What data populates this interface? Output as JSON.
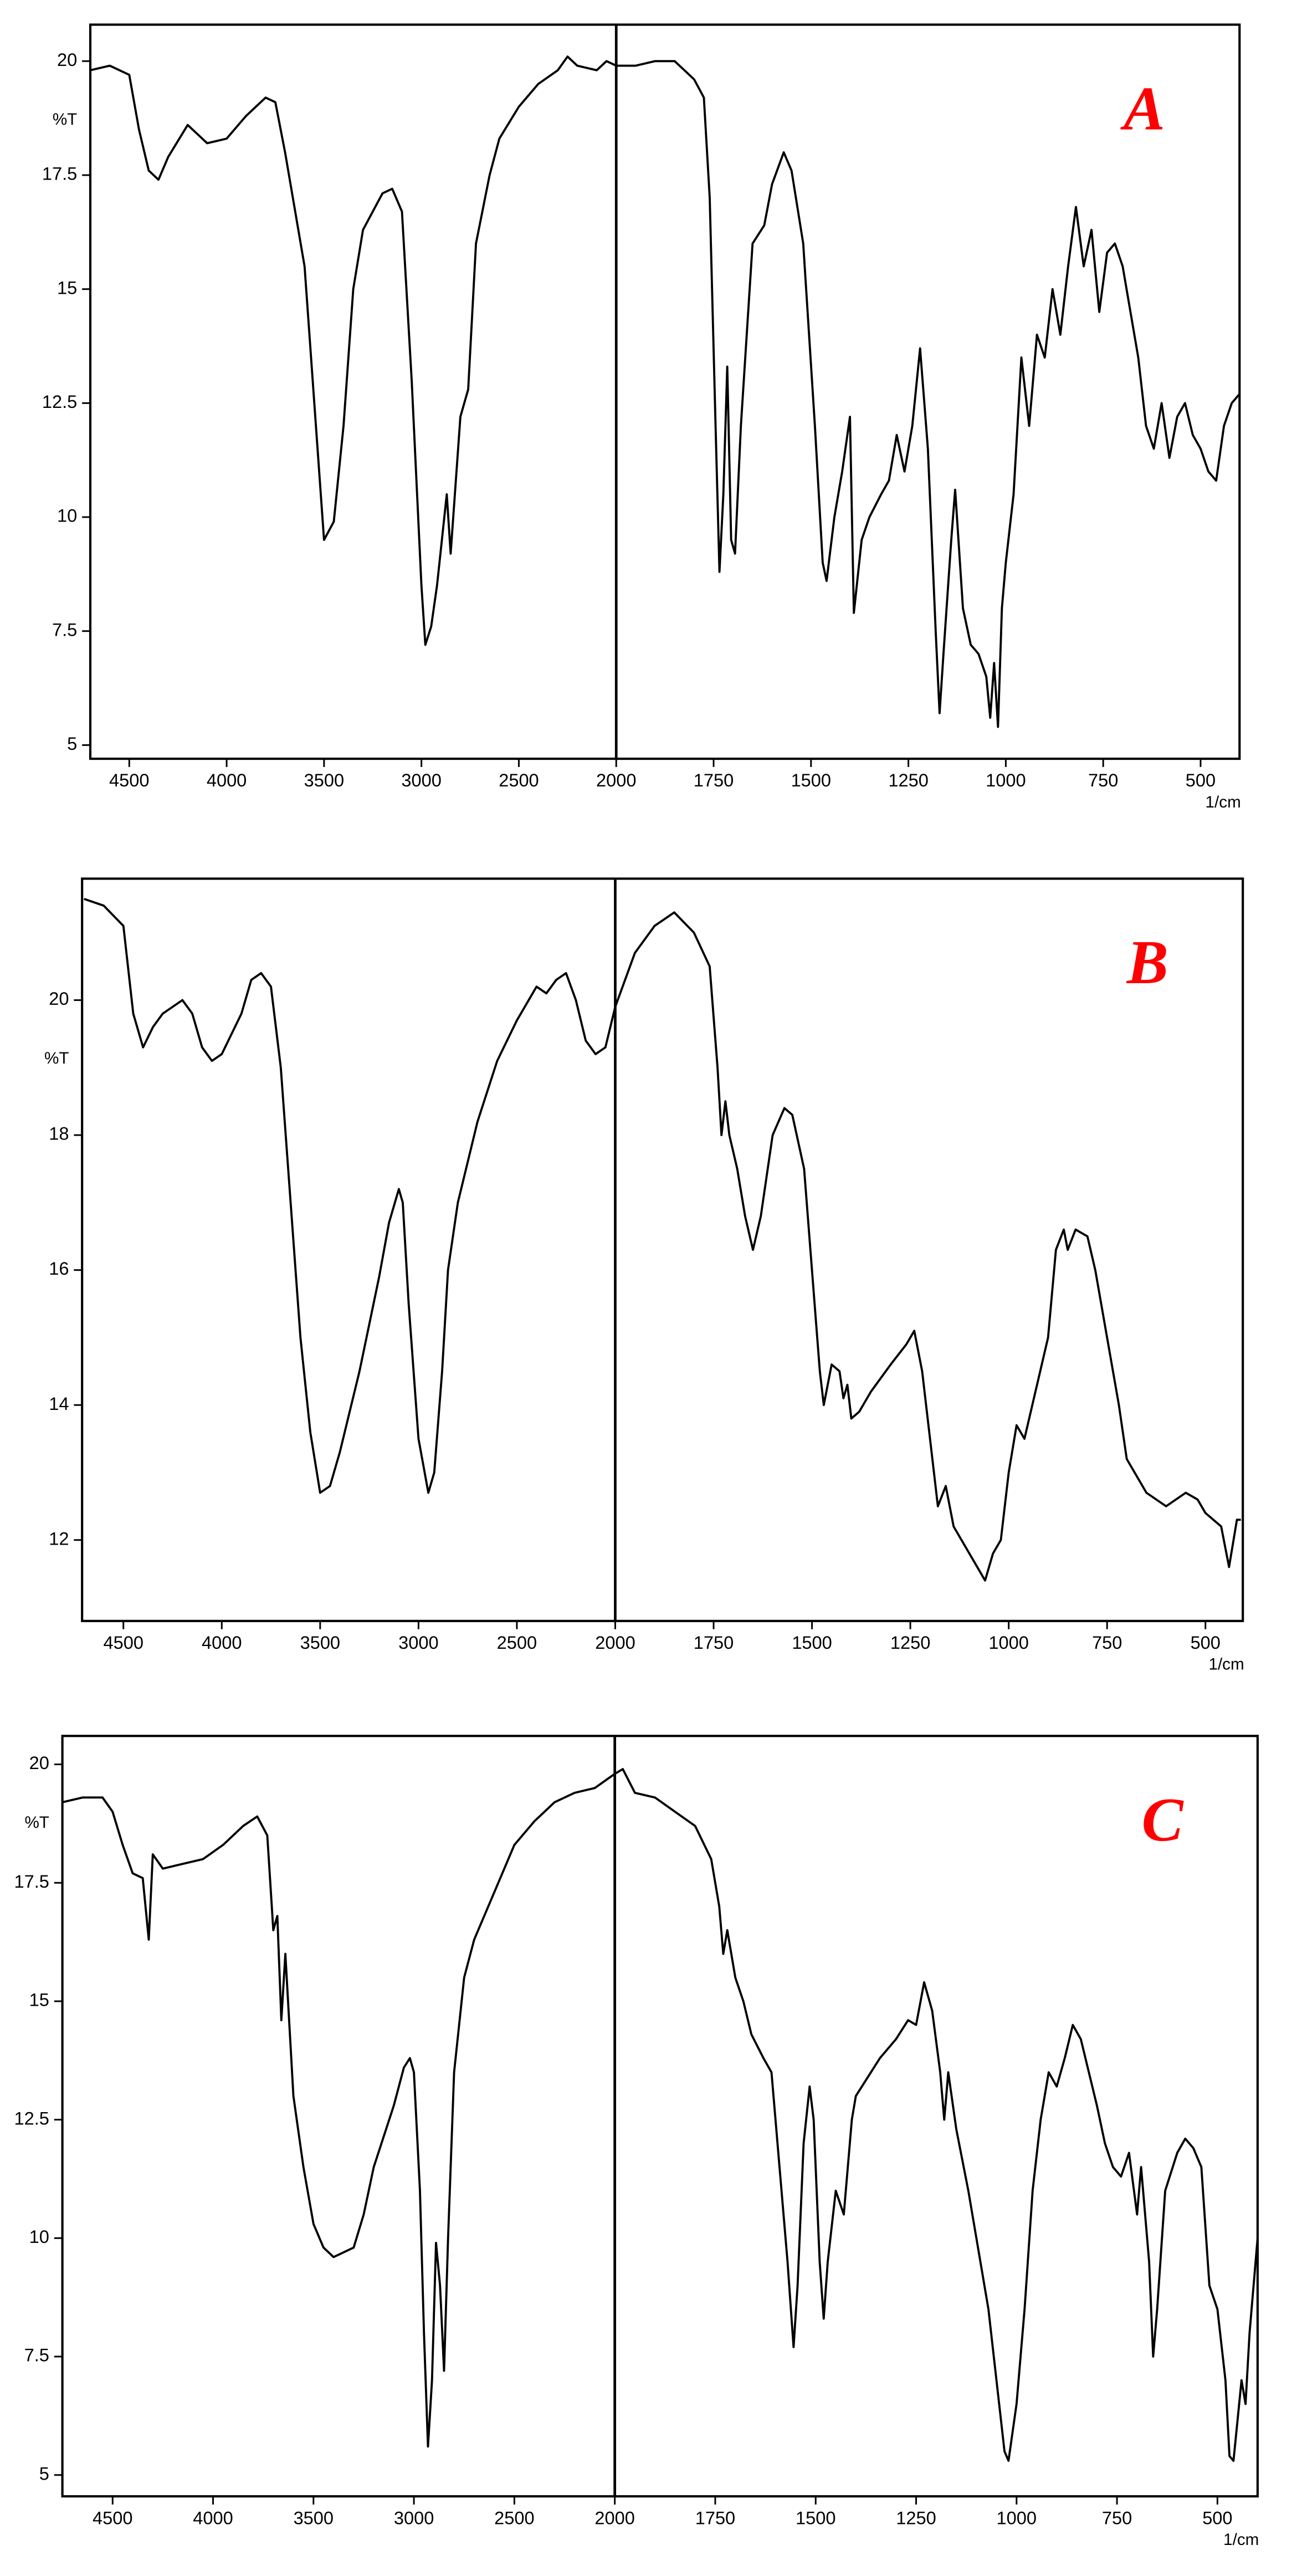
{
  "chart_data": [
    {
      "type": "line",
      "label": "A",
      "y_label": "%T",
      "x_label": "1/cm",
      "color": "#000000",
      "xlim": [
        4700,
        400
      ],
      "x_break": 2000,
      "x_break_factor": 2,
      "ylim": [
        4.7,
        20.8
      ],
      "xticks": [
        4500,
        4000,
        3500,
        3000,
        2500,
        2000,
        1750,
        1500,
        1250,
        1000,
        750,
        500
      ],
      "yticks": [
        5,
        7.5,
        10,
        12.5,
        15,
        17.5,
        20
      ],
      "x": [
        4700,
        4600,
        4500,
        4450,
        4400,
        4350,
        4300,
        4200,
        4100,
        4000,
        3900,
        3800,
        3750,
        3700,
        3600,
        3550,
        3500,
        3450,
        3400,
        3350,
        3300,
        3200,
        3150,
        3100,
        3050,
        3000,
        2980,
        2950,
        2920,
        2870,
        2850,
        2800,
        2760,
        2720,
        2650,
        2600,
        2500,
        2400,
        2300,
        2250,
        2200,
        2100,
        2050,
        2000,
        1950,
        1900,
        1850,
        1800,
        1775,
        1760,
        1745,
        1735,
        1725,
        1715,
        1705,
        1695,
        1680,
        1650,
        1620,
        1600,
        1570,
        1550,
        1520,
        1490,
        1470,
        1460,
        1440,
        1420,
        1400,
        1390,
        1370,
        1350,
        1320,
        1300,
        1280,
        1260,
        1240,
        1220,
        1200,
        1180,
        1170,
        1160,
        1140,
        1130,
        1110,
        1090,
        1070,
        1050,
        1040,
        1030,
        1020,
        1010,
        1000,
        980,
        960,
        940,
        920,
        900,
        880,
        860,
        840,
        820,
        800,
        780,
        760,
        740,
        720,
        700,
        680,
        660,
        640,
        620,
        600,
        580,
        560,
        540,
        520,
        500,
        480,
        460,
        440,
        420,
        400
      ],
      "values": [
        19.8,
        19.9,
        19.7,
        18.5,
        17.6,
        17.4,
        17.9,
        18.6,
        18.2,
        18.3,
        18.8,
        19.2,
        19.1,
        18,
        15.5,
        12.5,
        9.5,
        9.9,
        12,
        15,
        16.3,
        17.1,
        17.2,
        16.7,
        13,
        8.5,
        7.2,
        7.6,
        8.5,
        10.5,
        9.2,
        12.2,
        12.8,
        16,
        17.5,
        18.3,
        19,
        19.5,
        19.8,
        20.1,
        19.9,
        19.8,
        20,
        19.9,
        19.9,
        20,
        20,
        19.6,
        19.2,
        17,
        12,
        8.8,
        10.5,
        13.3,
        9.5,
        9.2,
        12,
        16,
        16.4,
        17.3,
        18,
        17.6,
        16,
        12,
        9,
        8.6,
        10,
        11,
        12.2,
        7.9,
        9.5,
        10,
        10.5,
        10.8,
        11.8,
        11,
        12,
        13.7,
        11.5,
        7.5,
        5.7,
        7,
        9.5,
        10.6,
        8,
        7.2,
        7,
        6.5,
        5.6,
        6.8,
        5.4,
        8,
        9,
        10.5,
        13.5,
        12,
        14,
        13.5,
        15,
        14,
        15.5,
        16.8,
        15.5,
        16.3,
        14.5,
        15.8,
        16,
        15.5,
        14.5,
        13.5,
        12,
        11.5,
        12.5,
        11.3,
        12.2,
        12.5,
        11.8,
        11.5,
        11,
        10.8,
        12,
        12.5,
        12.7
      ]
    },
    {
      "type": "line",
      "label": "B",
      "y_label": "%T",
      "x_label": "1/cm",
      "color": "#000000",
      "xlim": [
        4710,
        405
      ],
      "x_break": 2000,
      "x_break_factor": 2,
      "ylim": [
        10.8,
        21.8
      ],
      "xticks": [
        4500,
        4000,
        3500,
        3000,
        2500,
        2000,
        1750,
        1500,
        1250,
        1000,
        750,
        500
      ],
      "yticks": [
        12,
        14,
        16,
        18,
        20
      ],
      "x": [
        4700,
        4600,
        4500,
        4450,
        4400,
        4350,
        4300,
        4200,
        4150,
        4100,
        4050,
        4000,
        3900,
        3850,
        3800,
        3750,
        3700,
        3650,
        3600,
        3550,
        3500,
        3450,
        3400,
        3300,
        3200,
        3150,
        3100,
        3080,
        3050,
        3000,
        2950,
        2920,
        2880,
        2850,
        2800,
        2700,
        2600,
        2500,
        2400,
        2350,
        2300,
        2250,
        2200,
        2150,
        2100,
        2050,
        2000,
        1950,
        1900,
        1850,
        1800,
        1760,
        1740,
        1730,
        1720,
        1710,
        1690,
        1670,
        1650,
        1630,
        1600,
        1570,
        1550,
        1520,
        1500,
        1480,
        1470,
        1450,
        1430,
        1420,
        1410,
        1400,
        1380,
        1350,
        1300,
        1260,
        1240,
        1220,
        1200,
        1180,
        1160,
        1140,
        1120,
        1100,
        1080,
        1060,
        1040,
        1020,
        1000,
        980,
        960,
        940,
        900,
        880,
        860,
        850,
        830,
        800,
        780,
        750,
        720,
        700,
        650,
        600,
        550,
        520,
        500,
        480,
        460,
        440,
        420,
        410
      ],
      "values": [
        21.5,
        21.4,
        21.1,
        19.8,
        19.3,
        19.6,
        19.8,
        20,
        19.8,
        19.3,
        19.1,
        19.2,
        19.8,
        20.3,
        20.4,
        20.2,
        19,
        17,
        15,
        13.6,
        12.7,
        12.8,
        13.3,
        14.5,
        15.9,
        16.7,
        17.2,
        17,
        15.5,
        13.5,
        12.7,
        13,
        14.5,
        16,
        17,
        18.2,
        19.1,
        19.7,
        20.2,
        20.1,
        20.3,
        20.4,
        20,
        19.4,
        19.2,
        19.3,
        19.9,
        20.7,
        21.1,
        21.3,
        21,
        20.5,
        19,
        18,
        18.5,
        18,
        17.5,
        16.8,
        16.3,
        16.8,
        18,
        18.4,
        18.3,
        17.5,
        16,
        14.5,
        14,
        14.6,
        14.5,
        14.1,
        14.3,
        13.8,
        13.9,
        14.2,
        14.6,
        14.9,
        15.1,
        14.5,
        13.5,
        12.5,
        12.8,
        12.2,
        12,
        11.8,
        11.6,
        11.4,
        11.8,
        12,
        13,
        13.7,
        13.5,
        14,
        15,
        16.3,
        16.6,
        16.3,
        16.6,
        16.5,
        16,
        15,
        14,
        13.2,
        12.7,
        12.5,
        12.7,
        12.6,
        12.4,
        12.3,
        12.2,
        11.6,
        12.3,
        12.3
      ]
    },
    {
      "type": "line",
      "label": "C",
      "y_label": "%T",
      "x_label": "1/cm",
      "color": "#000000",
      "xlim": [
        4750,
        400
      ],
      "x_break": 2000,
      "x_break_factor": 2,
      "ylim": [
        4.55,
        20.6
      ],
      "xticks": [
        4500,
        4000,
        3500,
        3000,
        2500,
        2000,
        1750,
        1500,
        1250,
        1000,
        750,
        500
      ],
      "yticks": [
        5,
        7.5,
        10,
        12.5,
        15,
        17.5,
        20
      ],
      "x": [
        4750,
        4650,
        4550,
        4500,
        4450,
        4400,
        4350,
        4320,
        4300,
        4250,
        4150,
        4050,
        3950,
        3850,
        3780,
        3730,
        3700,
        3680,
        3660,
        3640,
        3600,
        3550,
        3500,
        3450,
        3400,
        3350,
        3300,
        3250,
        3200,
        3100,
        3050,
        3020,
        3000,
        2970,
        2950,
        2930,
        2910,
        2890,
        2870,
        2850,
        2830,
        2800,
        2750,
        2700,
        2600,
        2500,
        2400,
        2300,
        2200,
        2100,
        2000,
        1980,
        1950,
        1900,
        1850,
        1800,
        1760,
        1740,
        1730,
        1720,
        1700,
        1680,
        1660,
        1630,
        1610,
        1590,
        1570,
        1555,
        1545,
        1530,
        1515,
        1505,
        1490,
        1480,
        1470,
        1450,
        1430,
        1410,
        1400,
        1370,
        1340,
        1300,
        1270,
        1250,
        1230,
        1210,
        1190,
        1180,
        1170,
        1150,
        1120,
        1100,
        1070,
        1050,
        1030,
        1020,
        1000,
        980,
        960,
        940,
        920,
        900,
        880,
        860,
        840,
        820,
        800,
        780,
        760,
        740,
        720,
        700,
        690,
        670,
        660,
        650,
        630,
        600,
        580,
        560,
        540,
        520,
        500,
        480,
        470,
        460,
        440,
        430,
        420,
        400
      ],
      "values": [
        19.2,
        19.3,
        19.3,
        19,
        18.3,
        17.7,
        17.6,
        16.3,
        18.1,
        17.8,
        17.9,
        18,
        18.3,
        18.7,
        18.9,
        18.5,
        16.5,
        16.8,
        14.6,
        16,
        13,
        11.5,
        10.3,
        9.8,
        9.6,
        9.7,
        9.8,
        10.5,
        11.5,
        12.8,
        13.6,
        13.8,
        13.5,
        11,
        8,
        5.6,
        7,
        9.9,
        9,
        7.2,
        10,
        13.5,
        15.5,
        16.3,
        17.3,
        18.3,
        18.8,
        19.2,
        19.4,
        19.5,
        19.8,
        19.9,
        19.4,
        19.3,
        19,
        18.7,
        18,
        17,
        16,
        16.5,
        15.5,
        15,
        14.3,
        13.8,
        13.5,
        11.5,
        9.5,
        7.7,
        9,
        12,
        13.2,
        12.5,
        9.5,
        8.3,
        9.5,
        11,
        10.5,
        12.5,
        13,
        13.4,
        13.8,
        14.2,
        14.6,
        14.5,
        15.4,
        14.8,
        13.5,
        12.5,
        13.5,
        12.3,
        11,
        10,
        8.5,
        7,
        5.5,
        5.3,
        6.5,
        8.5,
        11,
        12.5,
        13.5,
        13.2,
        13.8,
        14.5,
        14.2,
        13.5,
        12.8,
        12,
        11.5,
        11.3,
        11.8,
        10.5,
        11.5,
        9.5,
        7.5,
        8.5,
        11,
        11.8,
        12.1,
        11.9,
        11.5,
        9,
        8.5,
        7,
        5.4,
        5.3,
        7,
        6.5,
        8,
        10
      ]
    }
  ]
}
